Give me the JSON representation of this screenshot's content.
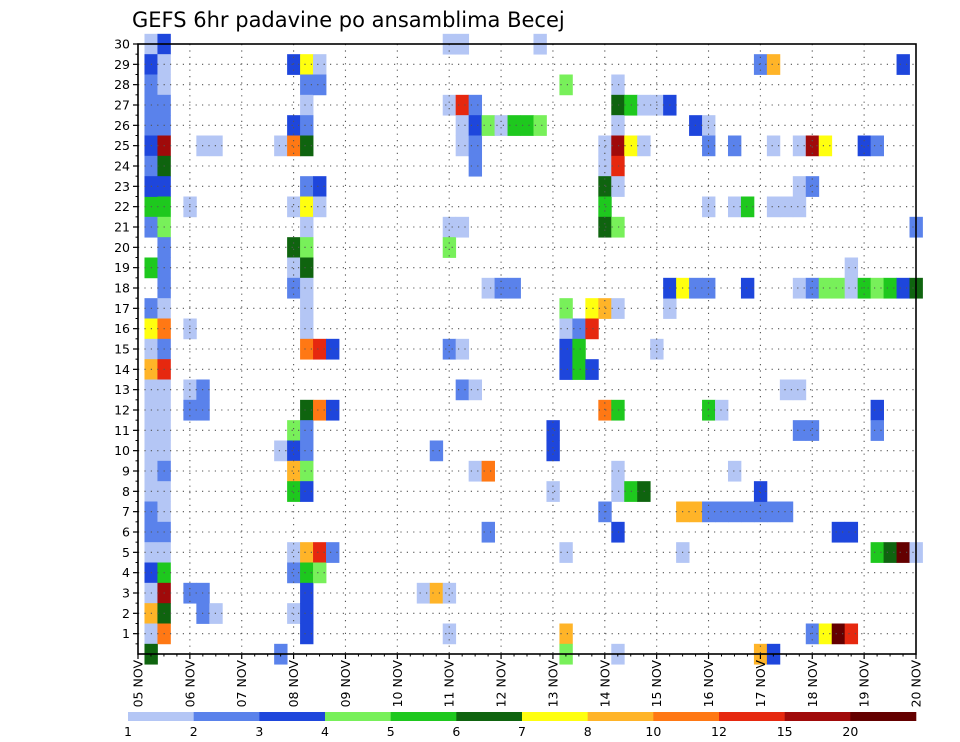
{
  "chart_data": {
    "type": "heatmap",
    "title": "GEFS 6hr padavine po ansamblima Becej",
    "xlabel": "",
    "ylabel": "",
    "x_range": [
      0,
      60
    ],
    "y_range": [
      0,
      30
    ],
    "x_ticks": [
      {
        "pos": 0,
        "label": "05 NOV"
      },
      {
        "pos": 4,
        "label": "06 NOV"
      },
      {
        "pos": 8,
        "label": "07 NOV"
      },
      {
        "pos": 12,
        "label": "08 NOV"
      },
      {
        "pos": 16,
        "label": "09 NOV"
      },
      {
        "pos": 20,
        "label": "10 NOV"
      },
      {
        "pos": 24,
        "label": "11 NOV"
      },
      {
        "pos": 28,
        "label": "12 NOV"
      },
      {
        "pos": 32,
        "label": "13 NOV"
      },
      {
        "pos": 36,
        "label": "14 NOV"
      },
      {
        "pos": 40,
        "label": "15 NOV"
      },
      {
        "pos": 44,
        "label": "16 NOV"
      },
      {
        "pos": 48,
        "label": "17 NOV"
      },
      {
        "pos": 52,
        "label": "18 NOV"
      },
      {
        "pos": 56,
        "label": "19 NOV"
      },
      {
        "pos": 60,
        "label": "20 NOV"
      }
    ],
    "y_ticks": [
      "1",
      "2",
      "3",
      "4",
      "5",
      "6",
      "7",
      "8",
      "9",
      "10",
      "11",
      "12",
      "13",
      "14",
      "15",
      "16",
      "17",
      "18",
      "19",
      "20",
      "21",
      "22",
      "23",
      "24",
      "25",
      "26",
      "27",
      "28",
      "29",
      "30"
    ],
    "grid": true,
    "colorbar": {
      "labels": [
        "1",
        "2",
        "3",
        "4",
        "5",
        "6",
        "7",
        "8",
        "10",
        "12",
        "15",
        "20"
      ],
      "colors": [
        "#b4c6f5",
        "#5a82eb",
        "#1e46dc",
        "#78f05a",
        "#1ec81e",
        "#0f640f",
        "#ffff0f",
        "#ffb428",
        "#ff7814",
        "#e6280f",
        "#a00a0a",
        "#640000"
      ]
    },
    "cells": [
      [
        1,
        29,
        2
      ],
      [
        1,
        28,
        1
      ],
      [
        1,
        27,
        1
      ],
      [
        1,
        26,
        1
      ],
      [
        1,
        25,
        2
      ],
      [
        1,
        24,
        1
      ],
      [
        1,
        23,
        2
      ],
      [
        1,
        22,
        4
      ],
      [
        1,
        21,
        1
      ],
      [
        1,
        19,
        4
      ],
      [
        1,
        17,
        1
      ],
      [
        1,
        16,
        6
      ],
      [
        1,
        15,
        0
      ],
      [
        1,
        14,
        7
      ],
      [
        1,
        13,
        0
      ],
      [
        1,
        12,
        0
      ],
      [
        1,
        11,
        0
      ],
      [
        1,
        10,
        0
      ],
      [
        1,
        9,
        0
      ],
      [
        1,
        8,
        0
      ],
      [
        1,
        7,
        1
      ],
      [
        1,
        6,
        1
      ],
      [
        1,
        5,
        0
      ],
      [
        1,
        4,
        2
      ],
      [
        1,
        3,
        0
      ],
      [
        1,
        2,
        7
      ],
      [
        1,
        1,
        0
      ],
      [
        1,
        0,
        5
      ],
      [
        1,
        30,
        0
      ],
      [
        1,
        29,
        2
      ],
      [
        1,
        28,
        1
      ],
      [
        1,
        27,
        1
      ],
      [
        1,
        26,
        1
      ],
      [
        1,
        25,
        2
      ],
      [
        1,
        24,
        1
      ],
      [
        1,
        23,
        2
      ],
      [
        2,
        30,
        2
      ],
      [
        2,
        29,
        0
      ],
      [
        2,
        28,
        0
      ],
      [
        2,
        27,
        1
      ],
      [
        2,
        26,
        1
      ],
      [
        2,
        25,
        10
      ],
      [
        2,
        24,
        5
      ],
      [
        2,
        23,
        2
      ],
      [
        2,
        22,
        4
      ],
      [
        2,
        21,
        3
      ],
      [
        2,
        20,
        1
      ],
      [
        2,
        19,
        1
      ],
      [
        2,
        18,
        1
      ],
      [
        2,
        17,
        0
      ],
      [
        2,
        16,
        8
      ],
      [
        2,
        15,
        1
      ],
      [
        2,
        14,
        9
      ],
      [
        2,
        13,
        0
      ],
      [
        2,
        12,
        0
      ],
      [
        2,
        11,
        0
      ],
      [
        2,
        10,
        0
      ],
      [
        2,
        9,
        1
      ],
      [
        2,
        8,
        0
      ],
      [
        2,
        7,
        0
      ],
      [
        2,
        6,
        1
      ],
      [
        2,
        5,
        0
      ],
      [
        2,
        4,
        4
      ],
      [
        2,
        3,
        10
      ],
      [
        2,
        2,
        5
      ],
      [
        2,
        1,
        8
      ],
      [
        4,
        22,
        0
      ],
      [
        4,
        16,
        0
      ],
      [
        4,
        13,
        0
      ],
      [
        4,
        12,
        1
      ],
      [
        4,
        3,
        1
      ],
      [
        5,
        25,
        0
      ],
      [
        5,
        13,
        1
      ],
      [
        5,
        12,
        1
      ],
      [
        5,
        3,
        1
      ],
      [
        5,
        2,
        1
      ],
      [
        6,
        25,
        0
      ],
      [
        6,
        2,
        0
      ],
      [
        11,
        25,
        0
      ],
      [
        11,
        10,
        0
      ],
      [
        11,
        0,
        1
      ],
      [
        12,
        29,
        2
      ],
      [
        12,
        26,
        2
      ],
      [
        12,
        25,
        8
      ],
      [
        12,
        22,
        0
      ],
      [
        12,
        20,
        5
      ],
      [
        12,
        19,
        0
      ],
      [
        12,
        18,
        1
      ],
      [
        12,
        11,
        3
      ],
      [
        12,
        10,
        2
      ],
      [
        12,
        9,
        7
      ],
      [
        12,
        8,
        4
      ],
      [
        12,
        5,
        0
      ],
      [
        12,
        4,
        1
      ],
      [
        12,
        2,
        0
      ],
      [
        13,
        29,
        6
      ],
      [
        13,
        28,
        1
      ],
      [
        13,
        27,
        0
      ],
      [
        13,
        26,
        1
      ],
      [
        13,
        25,
        5
      ],
      [
        13,
        23,
        1
      ],
      [
        13,
        22,
        6
      ],
      [
        13,
        21,
        0
      ],
      [
        13,
        20,
        3
      ],
      [
        13,
        19,
        5
      ],
      [
        13,
        18,
        0
      ],
      [
        13,
        17,
        0
      ],
      [
        13,
        16,
        0
      ],
      [
        13,
        15,
        8
      ],
      [
        13,
        12,
        5
      ],
      [
        13,
        11,
        1
      ],
      [
        13,
        10,
        1
      ],
      [
        13,
        9,
        3
      ],
      [
        13,
        8,
        2
      ],
      [
        13,
        5,
        7
      ],
      [
        13,
        4,
        4
      ],
      [
        13,
        3,
        2
      ],
      [
        13,
        2,
        2
      ],
      [
        13,
        1,
        2
      ],
      [
        14,
        29,
        0
      ],
      [
        14,
        28,
        1
      ],
      [
        14,
        23,
        2
      ],
      [
        14,
        22,
        0
      ],
      [
        14,
        15,
        9
      ],
      [
        14,
        12,
        8
      ],
      [
        14,
        5,
        9
      ],
      [
        14,
        4,
        3
      ],
      [
        15,
        15,
        2
      ],
      [
        15,
        12,
        2
      ],
      [
        15,
        5,
        1
      ],
      [
        22,
        3,
        0
      ],
      [
        23,
        10,
        1
      ],
      [
        23,
        3,
        7
      ],
      [
        24,
        30,
        0
      ],
      [
        24,
        27,
        0
      ],
      [
        24,
        21,
        0
      ],
      [
        24,
        20,
        3
      ],
      [
        24,
        15,
        1
      ],
      [
        24,
        3,
        0
      ],
      [
        24,
        1,
        0
      ],
      [
        25,
        30,
        0
      ],
      [
        25,
        27,
        9
      ],
      [
        25,
        26,
        0
      ],
      [
        25,
        25,
        0
      ],
      [
        25,
        21,
        0
      ],
      [
        25,
        15,
        0
      ],
      [
        25,
        13,
        1
      ],
      [
        26,
        27,
        1
      ],
      [
        26,
        26,
        2
      ],
      [
        26,
        25,
        1
      ],
      [
        26,
        24,
        1
      ],
      [
        26,
        13,
        0
      ],
      [
        26,
        9,
        0
      ],
      [
        27,
        26,
        3
      ],
      [
        27,
        18,
        0
      ],
      [
        27,
        9,
        8
      ],
      [
        27,
        6,
        1
      ],
      [
        28,
        26,
        0
      ],
      [
        28,
        18,
        1
      ],
      [
        29,
        26,
        4
      ],
      [
        29,
        18,
        1
      ],
      [
        30,
        26,
        4
      ],
      [
        31,
        26,
        3
      ],
      [
        31,
        30,
        0
      ],
      [
        32,
        11,
        2
      ],
      [
        32,
        10,
        2
      ],
      [
        32,
        8,
        0
      ],
      [
        33,
        28,
        3
      ],
      [
        33,
        17,
        3
      ],
      [
        33,
        16,
        0
      ],
      [
        33,
        15,
        2
      ],
      [
        33,
        14,
        2
      ],
      [
        33,
        5,
        0
      ],
      [
        33,
        1,
        7
      ],
      [
        33,
        0,
        3
      ],
      [
        34,
        16,
        1
      ],
      [
        34,
        15,
        4
      ],
      [
        34,
        14,
        4
      ],
      [
        35,
        17,
        6
      ],
      [
        35,
        16,
        9
      ],
      [
        35,
        14,
        2
      ],
      [
        36,
        25,
        0
      ],
      [
        36,
        24,
        0
      ],
      [
        36,
        23,
        5
      ],
      [
        36,
        22,
        4
      ],
      [
        36,
        21,
        5
      ],
      [
        36,
        17,
        7
      ],
      [
        36,
        12,
        8
      ],
      [
        36,
        7,
        1
      ],
      [
        37,
        28,
        0
      ],
      [
        37,
        27,
        5
      ],
      [
        37,
        26,
        0
      ],
      [
        37,
        25,
        10
      ],
      [
        37,
        24,
        9
      ],
      [
        37,
        23,
        0
      ],
      [
        37,
        21,
        3
      ],
      [
        37,
        17,
        0
      ],
      [
        37,
        12,
        4
      ],
      [
        37,
        9,
        0
      ],
      [
        37,
        8,
        0
      ],
      [
        37,
        6,
        2
      ],
      [
        37,
        0,
        0
      ],
      [
        38,
        27,
        4
      ],
      [
        38,
        25,
        6
      ],
      [
        38,
        8,
        4
      ],
      [
        39,
        27,
        0
      ],
      [
        39,
        25,
        0
      ],
      [
        39,
        8,
        5
      ],
      [
        40,
        27,
        0
      ],
      [
        40,
        15,
        0
      ],
      [
        41,
        27,
        2
      ],
      [
        41,
        17,
        0
      ],
      [
        41,
        18,
        2
      ],
      [
        42,
        18,
        6
      ],
      [
        42,
        7,
        7
      ],
      [
        42,
        5,
        0
      ],
      [
        43,
        26,
        2
      ],
      [
        43,
        18,
        1
      ],
      [
        43,
        7,
        7
      ],
      [
        44,
        26,
        0
      ],
      [
        44,
        25,
        1
      ],
      [
        44,
        22,
        0
      ],
      [
        44,
        18,
        1
      ],
      [
        44,
        12,
        4
      ],
      [
        44,
        7,
        1
      ],
      [
        45,
        12,
        0
      ],
      [
        45,
        7,
        1
      ],
      [
        46,
        25,
        1
      ],
      [
        46,
        22,
        0
      ],
      [
        46,
        7,
        1
      ],
      [
        46,
        9,
        0
      ],
      [
        47,
        22,
        4
      ],
      [
        47,
        18,
        2
      ],
      [
        47,
        7,
        1
      ],
      [
        48,
        29,
        1
      ],
      [
        48,
        7,
        1
      ],
      [
        48,
        8,
        2
      ],
      [
        48,
        0,
        7
      ],
      [
        49,
        29,
        7
      ],
      [
        49,
        25,
        0
      ],
      [
        49,
        22,
        0
      ],
      [
        49,
        7,
        1
      ],
      [
        49,
        0,
        2
      ],
      [
        50,
        22,
        0
      ],
      [
        50,
        13,
        0
      ],
      [
        50,
        7,
        1
      ],
      [
        51,
        25,
        0
      ],
      [
        51,
        23,
        0
      ],
      [
        51,
        22,
        0
      ],
      [
        51,
        18,
        0
      ],
      [
        51,
        13,
        0
      ],
      [
        51,
        11,
        1
      ],
      [
        52,
        25,
        10
      ],
      [
        52,
        23,
        1
      ],
      [
        52,
        18,
        1
      ],
      [
        52,
        11,
        1
      ],
      [
        52,
        1,
        1
      ],
      [
        53,
        25,
        6
      ],
      [
        53,
        18,
        3
      ],
      [
        53,
        1,
        6
      ],
      [
        54,
        18,
        3
      ],
      [
        54,
        6,
        2
      ],
      [
        54,
        1,
        11
      ],
      [
        55,
        19,
        0
      ],
      [
        55,
        18,
        0
      ],
      [
        55,
        6,
        2
      ],
      [
        55,
        1,
        9
      ],
      [
        56,
        25,
        2
      ],
      [
        56,
        18,
        4
      ],
      [
        57,
        25,
        1
      ],
      [
        57,
        18,
        3
      ],
      [
        57,
        12,
        2
      ],
      [
        57,
        11,
        1
      ],
      [
        57,
        5,
        4
      ],
      [
        58,
        18,
        4
      ],
      [
        58,
        5,
        5
      ],
      [
        59,
        29,
        2
      ],
      [
        59,
        18,
        2
      ],
      [
        59,
        5,
        11
      ],
      [
        60,
        21,
        1
      ],
      [
        60,
        18,
        5
      ],
      [
        60,
        5,
        0
      ]
    ]
  }
}
